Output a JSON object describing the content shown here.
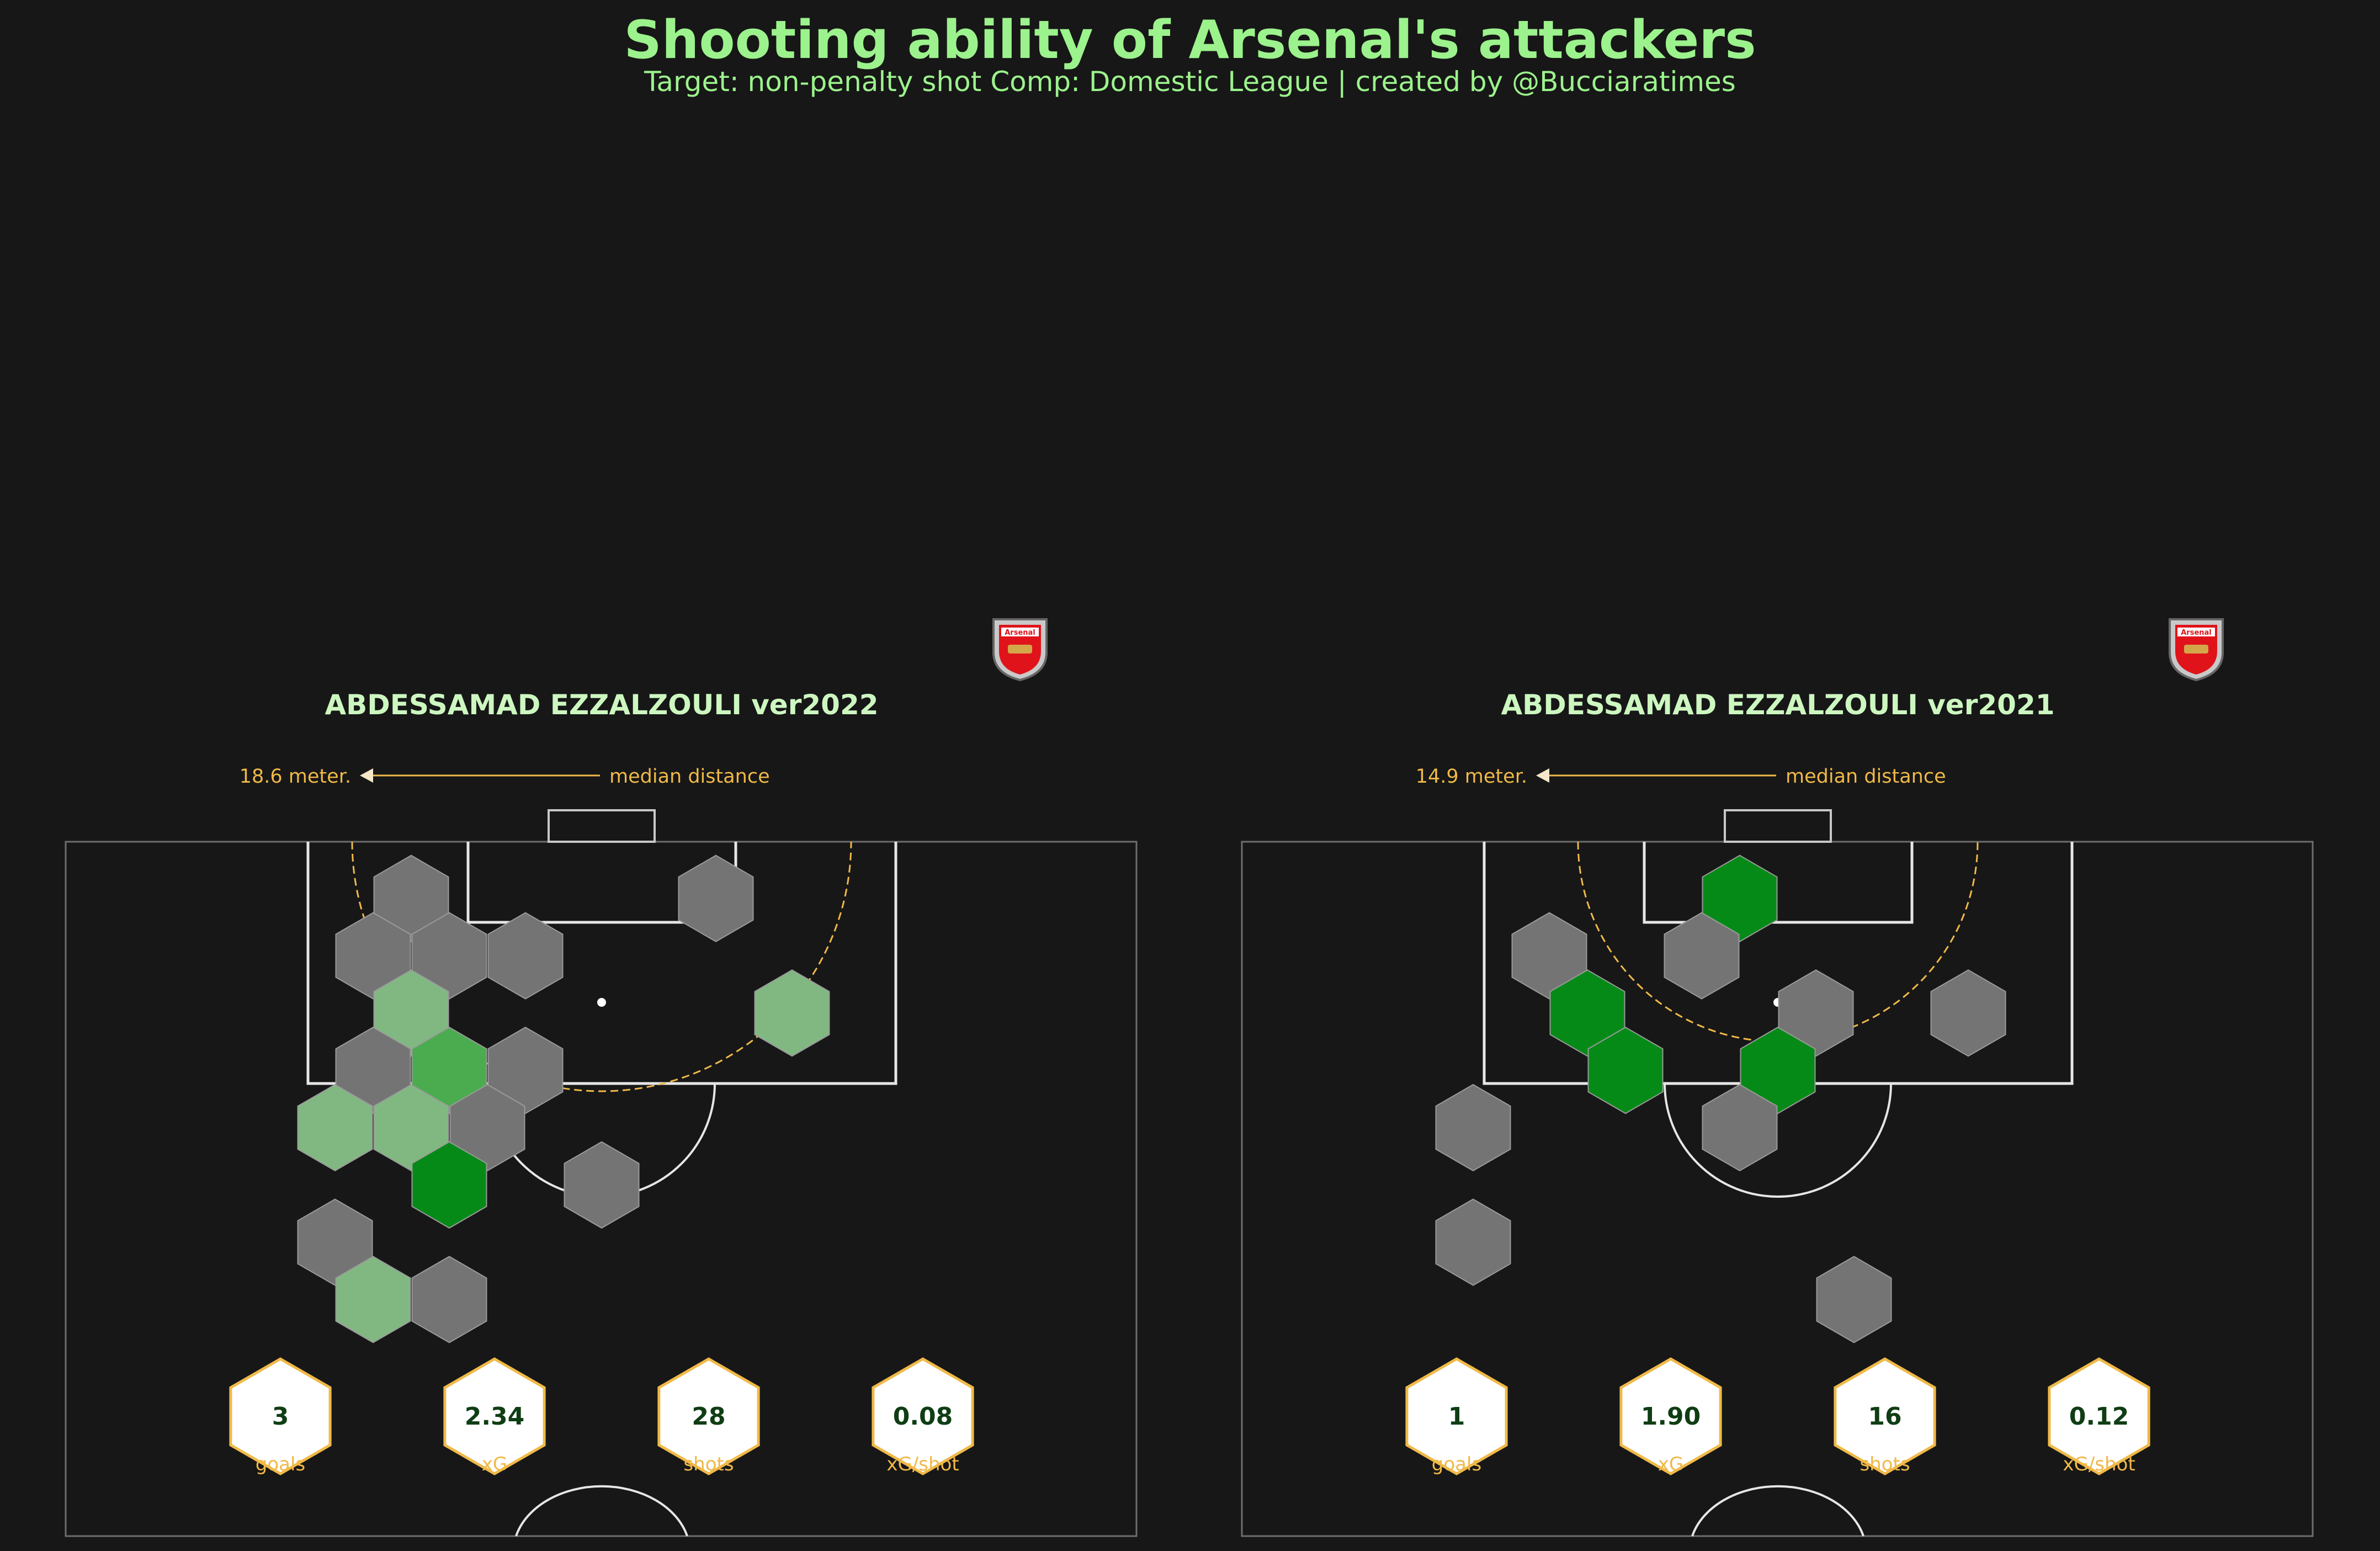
{
  "title": "Shooting ability of Arsenal's attackers",
  "subtitle": "Target: non-penalty shot Comp: Domestic League | created by @Bucciaratimes",
  "colors": {
    "background": "#171717",
    "title": "#9cf28c",
    "player_name": "#cdf7c0",
    "annotation": "#f0b948",
    "hex_grey": "#747474",
    "hex_light_green": "#81b882",
    "hex_mid_green": "#4aac4f",
    "hex_dark_green": "#068a17",
    "badge_red": "#e0131a",
    "stat_text": "#0f3d14"
  },
  "chart_data": [
    {
      "type": "hexbin",
      "player_title": "ABDESSAMAD EZZALZOULI ver2022",
      "crest": "arsenal-crest-icon",
      "crest_text": "Arsenal",
      "median_distance": {
        "value_label": "18.6 meter.",
        "label": "median distance"
      },
      "hexbins": [
        {
          "col": -5,
          "row": 1,
          "level": "grey"
        },
        {
          "col": -6,
          "row": 2,
          "level": "grey"
        },
        {
          "col": -4,
          "row": 2,
          "level": "grey"
        },
        {
          "col": -2,
          "row": 2,
          "level": "grey"
        },
        {
          "col": 3,
          "row": 1,
          "level": "grey"
        },
        {
          "col": -5,
          "row": 3,
          "level": "light"
        },
        {
          "col": 5,
          "row": 3,
          "level": "light"
        },
        {
          "col": -6,
          "row": 4,
          "level": "grey"
        },
        {
          "col": -4,
          "row": 4,
          "level": "mid"
        },
        {
          "col": -2,
          "row": 4,
          "level": "grey"
        },
        {
          "col": -7,
          "row": 5,
          "level": "light"
        },
        {
          "col": -5,
          "row": 5,
          "level": "light"
        },
        {
          "col": -3,
          "row": 5,
          "level": "grey"
        },
        {
          "col": -4,
          "row": 6,
          "level": "dark"
        },
        {
          "col": 0,
          "row": 6,
          "level": "grey"
        },
        {
          "col": -7,
          "row": 7,
          "level": "grey"
        },
        {
          "col": -6,
          "row": 8,
          "level": "light"
        },
        {
          "col": -4,
          "row": 8,
          "level": "grey"
        }
      ],
      "stats": [
        {
          "value": "3",
          "label": "goals"
        },
        {
          "value": "2.34",
          "label": "xG"
        },
        {
          "value": "28",
          "label": "shots"
        },
        {
          "value": "0.08",
          "label": "xG/shot"
        }
      ]
    },
    {
      "type": "hexbin",
      "player_title": "ABDESSAMAD EZZALZOULI ver2021",
      "crest": "arsenal-crest-icon",
      "crest_text": "Arsenal",
      "median_distance": {
        "value_label": "14.9 meter.",
        "label": "median distance"
      },
      "hexbins": [
        {
          "col": -1,
          "row": 1,
          "level": "dark"
        },
        {
          "col": -6,
          "row": 2,
          "level": "grey"
        },
        {
          "col": -2,
          "row": 2,
          "level": "grey"
        },
        {
          "col": -5,
          "row": 3,
          "level": "dark"
        },
        {
          "col": 1,
          "row": 3,
          "level": "grey"
        },
        {
          "col": 5,
          "row": 3,
          "level": "grey"
        },
        {
          "col": -4,
          "row": 4,
          "level": "dark"
        },
        {
          "col": 0,
          "row": 4,
          "level": "dark"
        },
        {
          "col": -8,
          "row": 5,
          "level": "grey"
        },
        {
          "col": -1,
          "row": 5,
          "level": "grey"
        },
        {
          "col": -8,
          "row": 7,
          "level": "grey"
        },
        {
          "col": 2,
          "row": 8,
          "level": "grey"
        }
      ],
      "stats": [
        {
          "value": "1",
          "label": "goals"
        },
        {
          "value": "1.90",
          "label": "xG"
        },
        {
          "value": "16",
          "label": "shots"
        },
        {
          "value": "0.12",
          "label": "xG/shot"
        }
      ]
    }
  ]
}
